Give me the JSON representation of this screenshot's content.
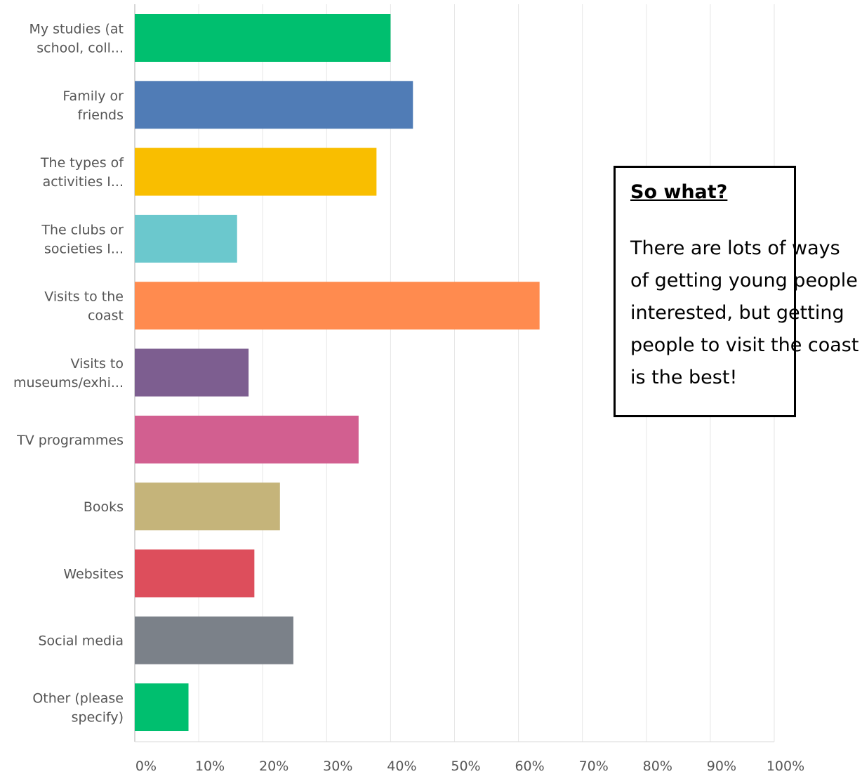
{
  "chart_data": {
    "type": "bar",
    "orientation": "horizontal",
    "categories": [
      [
        "My studies (at",
        "school, coll..."
      ],
      [
        "Family or",
        "friends"
      ],
      [
        "The types of",
        "activities I..."
      ],
      [
        "The clubs or",
        "societies I..."
      ],
      [
        "Visits to the",
        "coast"
      ],
      [
        "Visits to",
        "museums/exhi..."
      ],
      [
        "TV programmes"
      ],
      [
        "Books"
      ],
      [
        "Websites"
      ],
      [
        "Social media"
      ],
      [
        "Other (please",
        "specify)"
      ]
    ],
    "values": [
      40,
      43.5,
      37.8,
      16,
      63.3,
      17.8,
      35,
      22.7,
      18.7,
      24.8,
      8.4
    ],
    "colors": [
      "#00bf6f",
      "#507cb6",
      "#f9be00",
      "#6bc8cd",
      "#ff8b4f",
      "#7d5e90",
      "#d25f90",
      "#c5b47a",
      "#dd4e5c",
      "#7b8189",
      "#00bf6f"
    ],
    "xlim": [
      0,
      100
    ],
    "xticks": [
      "0%",
      "10%",
      "20%",
      "30%",
      "40%",
      "50%",
      "60%",
      "70%",
      "80%",
      "90%",
      "100%"
    ],
    "grid": true,
    "title": "",
    "xlabel": "",
    "ylabel": ""
  },
  "callout": {
    "heading": "So what?",
    "body": "There are lots of ways of getting young people interested, but getting people to visit the coast is the best!"
  }
}
